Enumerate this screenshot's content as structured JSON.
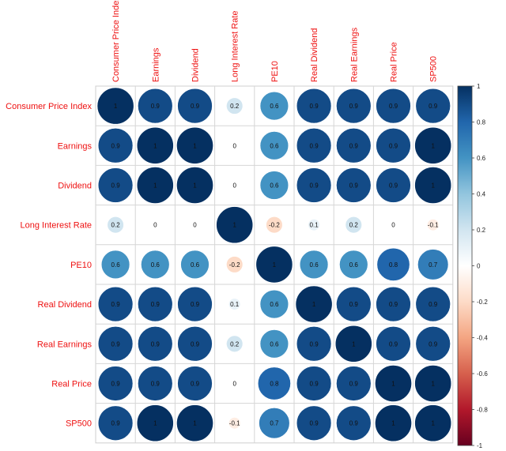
{
  "chart_data": {
    "type": "heatmap",
    "style": "circle correlation matrix",
    "title": "",
    "variables": [
      "Consumer Price Index",
      "Earnings",
      "Dividend",
      "Long Interest Rate",
      "PE10",
      "Real Dividend",
      "Real Earnings",
      "Real Price",
      "SP500"
    ],
    "matrix": [
      [
        "1",
        "0.9",
        "0.9",
        "0.2",
        "0.6",
        "0.9",
        "0.9",
        "0.9",
        "0.9"
      ],
      [
        "0.9",
        "1",
        "1",
        "0",
        "0.6",
        "0.9",
        "0.9",
        "0.9",
        "1"
      ],
      [
        "0.9",
        "1",
        "1",
        "0",
        "0.6",
        "0.9",
        "0.9",
        "0.9",
        "1"
      ],
      [
        "0.2",
        "0",
        "0",
        "1",
        "-0.2",
        "0.1",
        "0.2",
        "0",
        "-0.1"
      ],
      [
        "0.6",
        "0.6",
        "0.6",
        "-0.2",
        "1",
        "0.6",
        "0.6",
        "0.8",
        "0.7"
      ],
      [
        "0.9",
        "0.9",
        "0.9",
        "0.1",
        "0.6",
        "1",
        "0.9",
        "0.9",
        "0.9"
      ],
      [
        "0.9",
        "0.9",
        "0.9",
        "0.2",
        "0.6",
        "0.9",
        "1",
        "0.9",
        "0.9"
      ],
      [
        "0.9",
        "0.9",
        "0.9",
        "0",
        "0.8",
        "0.9",
        "0.9",
        "1",
        "1"
      ],
      [
        "0.9",
        "1",
        "1",
        "-0.1",
        "0.7",
        "0.9",
        "0.9",
        "1",
        "1"
      ]
    ],
    "colorbar": {
      "range": [
        -1,
        1
      ],
      "ticks": [
        "1",
        "0.8",
        "0.6",
        "0.4",
        "0.2",
        "0",
        "-0.2",
        "-0.4",
        "-0.6",
        "-0.8",
        "-1"
      ],
      "colors": [
        "#67001f",
        "#b2182b",
        "#d6604d",
        "#f4a582",
        "#fddbc7",
        "#ffffff",
        "#d1e5f0",
        "#92c5de",
        "#4393c3",
        "#2166ac",
        "#053061"
      ]
    },
    "label_color": "#ee1111",
    "grid": true,
    "legend": "right"
  }
}
